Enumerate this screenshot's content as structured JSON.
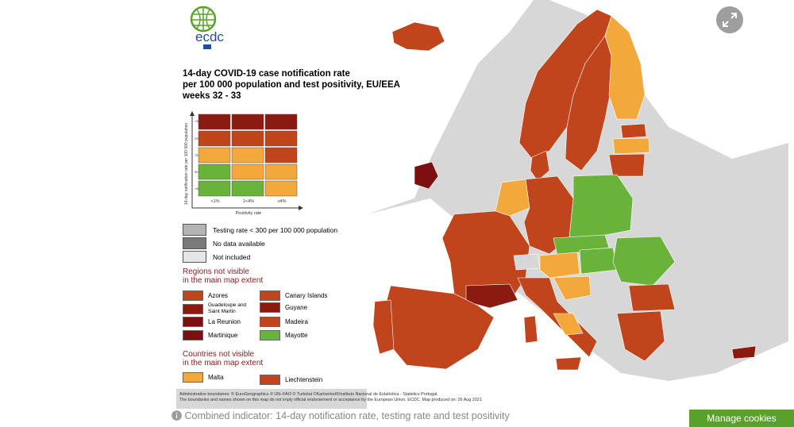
{
  "logo": {
    "text": "ecdc",
    "subtitle_lines": [
      "EUROPEAN CENTRE FOR",
      "DISEASE PREVENTION",
      "AND CONTROL"
    ]
  },
  "title": {
    "lines": [
      "14-day COVID-19 case notification rate",
      "per 100 000 population and test positivity, EU/EEA",
      "weeks 32 - 33"
    ]
  },
  "matrix": {
    "y_axis_label": "14-day notification rate per 100 000 population",
    "x_axis_label": "Positivity rate",
    "row_labels": [
      ">500",
      "200-499",
      "75-199",
      "50-74",
      "<50"
    ],
    "col_labels": [
      "<1%",
      "1<4%",
      "≥4%"
    ],
    "cells": [
      [
        "#8b1a10",
        "#8b1a10",
        "#8b1a10"
      ],
      [
        "#c0441c",
        "#c0441c",
        "#c0441c"
      ],
      [
        "#f2a83a",
        "#f2a83a",
        "#c0441c"
      ],
      [
        "#69b33b",
        "#f2a83a",
        "#f2a83a"
      ],
      [
        "#69b33b",
        "#69b33b",
        "#f2a83a"
      ]
    ]
  },
  "status_legend": [
    {
      "label": "Testing rate < 300 per 100 000 population",
      "color": "#b4b4b4"
    },
    {
      "label": "No data available",
      "color": "#7a7a7a"
    },
    {
      "label": "Not included",
      "color": "#e6e6e6"
    }
  ],
  "regions_heading": [
    "Regions not visible",
    "in the main map extent"
  ],
  "regions": [
    {
      "label": "Azores",
      "color": "#c0441c"
    },
    {
      "label": "Canary Islands",
      "color": "#c0441c"
    },
    {
      "label": "Guadeloupe and Saint Martin",
      "color": "#8b1a10"
    },
    {
      "label": "Guyane",
      "color": "#8b1a10"
    },
    {
      "label": "La Reunion",
      "color": "#7c1010"
    },
    {
      "label": "Madeira",
      "color": "#c0441c"
    },
    {
      "label": "Martinique",
      "color": "#7c1010"
    },
    {
      "label": "Mayotte",
      "color": "#69b33b"
    }
  ],
  "countries_heading": [
    "Countries not visible",
    "in the main map extent"
  ],
  "countries": [
    {
      "label": "Malta",
      "color": "#f2a83a"
    },
    {
      "label": "Liechtenstein",
      "color": "#c0441c"
    }
  ],
  "footer": [
    "Administrative boundaries: © EuroGeographics © UN–FAO © Turkstat ©Kartverket©Instituto Nacional de Estatística - Statistics Portugal.",
    "The boundaries and names shown on this map do not imply official endorsement or acceptance by the European Union. ECDC. Map produced on: 26 Aug 2021"
  ],
  "caption": "Combined indicator: 14-day notification rate, testing rate and test positivity",
  "cookies_label": "Manage cookies",
  "colors": {
    "dark_red": "#8b1a10",
    "red_orange": "#c0441c",
    "orange": "#f2a83a",
    "green": "#69b33b",
    "not_included": "#d7d7d7",
    "sea": "#ffffff"
  },
  "icons": {
    "fullscreen": "expand-arrows-icon",
    "info": "info-circle-icon"
  }
}
